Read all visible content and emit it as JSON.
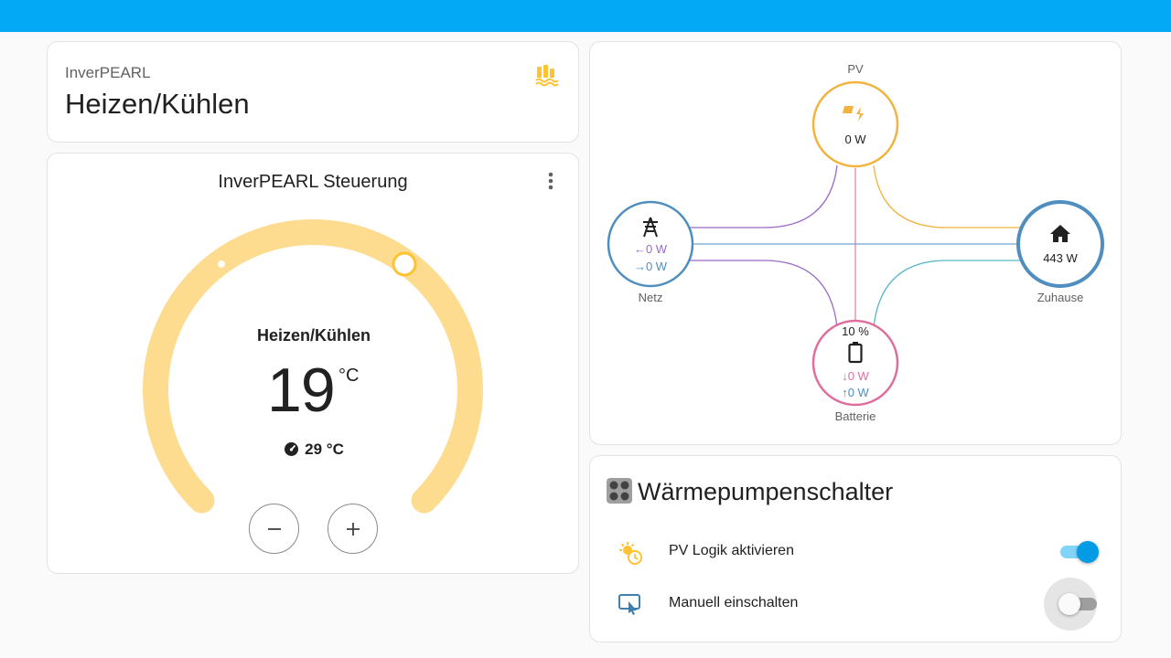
{
  "colors": {
    "header_bar": "#03a9f4",
    "heat_arc": "#fddc8f",
    "accent_orange": "#ffc233",
    "pv": "#f2b33f",
    "grid": "#4f8ebf",
    "home": "#4f8ebf",
    "battery": "#de6f9c",
    "purple": "#9b6bc9",
    "teal": "#5ab7c7",
    "toggle_on": "#039be5"
  },
  "mode_card": {
    "subtitle": "InverPEARL",
    "title": "Heizen/Kühlen",
    "icon": "heat-pump-icon"
  },
  "thermostat": {
    "card_title": "InverPEARL Steuerung",
    "menu_icon": "dots-vertical-icon",
    "mode": "Heizen/Kühlen",
    "target_temp": "19",
    "target_unit": "°C",
    "current_icon": "gauge-icon",
    "current_temp": "29 °C",
    "minus_icon": "minus-icon",
    "plus_icon": "plus-icon"
  },
  "energy": {
    "pv": {
      "label": "PV",
      "value": "0 W",
      "icon": "solar-power-icon"
    },
    "grid": {
      "label": "Netz",
      "import": "←0 W",
      "export": "→0 W",
      "icon": "transmission-tower-icon"
    },
    "home": {
      "label": "Zuhause",
      "value": "443 W",
      "icon": "home-icon"
    },
    "battery": {
      "label": "Batterie",
      "soc": "10 %",
      "in": "↓0 W",
      "out": "↑0 W",
      "icon": "battery-icon"
    }
  },
  "switches": {
    "title": "Wärmepumpenschalter",
    "title_icon": "heat-pump-switch-icon",
    "rows": [
      {
        "label": "PV Logik aktivieren",
        "icon": "sun-clock-icon",
        "state": "on"
      },
      {
        "label": "Manuell einschalten",
        "icon": "touch-screen-icon",
        "state": "off"
      }
    ]
  }
}
